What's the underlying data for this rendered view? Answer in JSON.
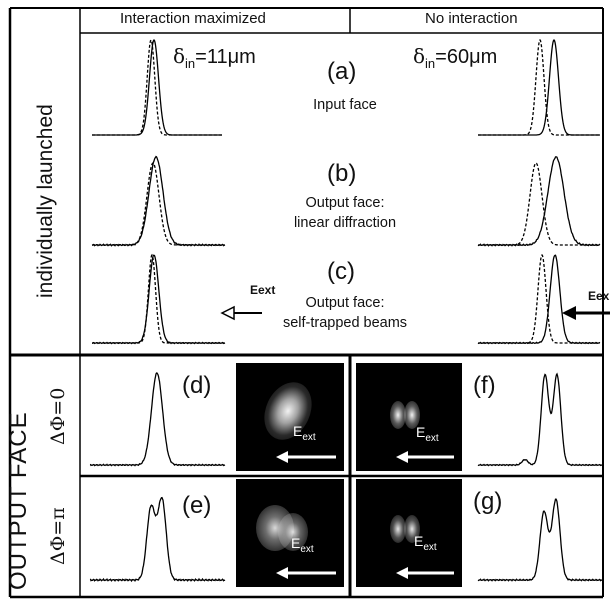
{
  "headers": {
    "left": "Interaction maximized",
    "right": "No interaction"
  },
  "side_labels": {
    "top": "individually launched",
    "bottom": "OUTPUT FACE",
    "row_d": "ΔΦ=0",
    "row_e": "ΔΦ=π"
  },
  "delta_left": {
    "symbol": "δ",
    "sub": "in",
    "value": "=11μm"
  },
  "delta_right": {
    "symbol": "δ",
    "sub": "in",
    "value": "=60μm"
  },
  "panels": {
    "a": {
      "label": "(a)",
      "caption_lines": [
        "Input face"
      ]
    },
    "b": {
      "label": "(b)",
      "caption_lines": [
        "Output face:",
        "linear diffraction"
      ]
    },
    "c": {
      "label": "(c)",
      "caption_lines": [
        "Output face:",
        "self-trapped beams"
      ]
    },
    "d": {
      "label": "(d)"
    },
    "e": {
      "label": "(e)"
    },
    "f": {
      "label": "(f)"
    },
    "g": {
      "label": "(g)"
    }
  },
  "field": {
    "label": "E",
    "sub": "ext",
    "left_arrow_label": "Eext",
    "right_arrow_label": "Eex"
  },
  "colors": {
    "line": "#000000",
    "background": "#ffffff",
    "image_bg": "#000000",
    "spot": "#ffffff"
  }
}
